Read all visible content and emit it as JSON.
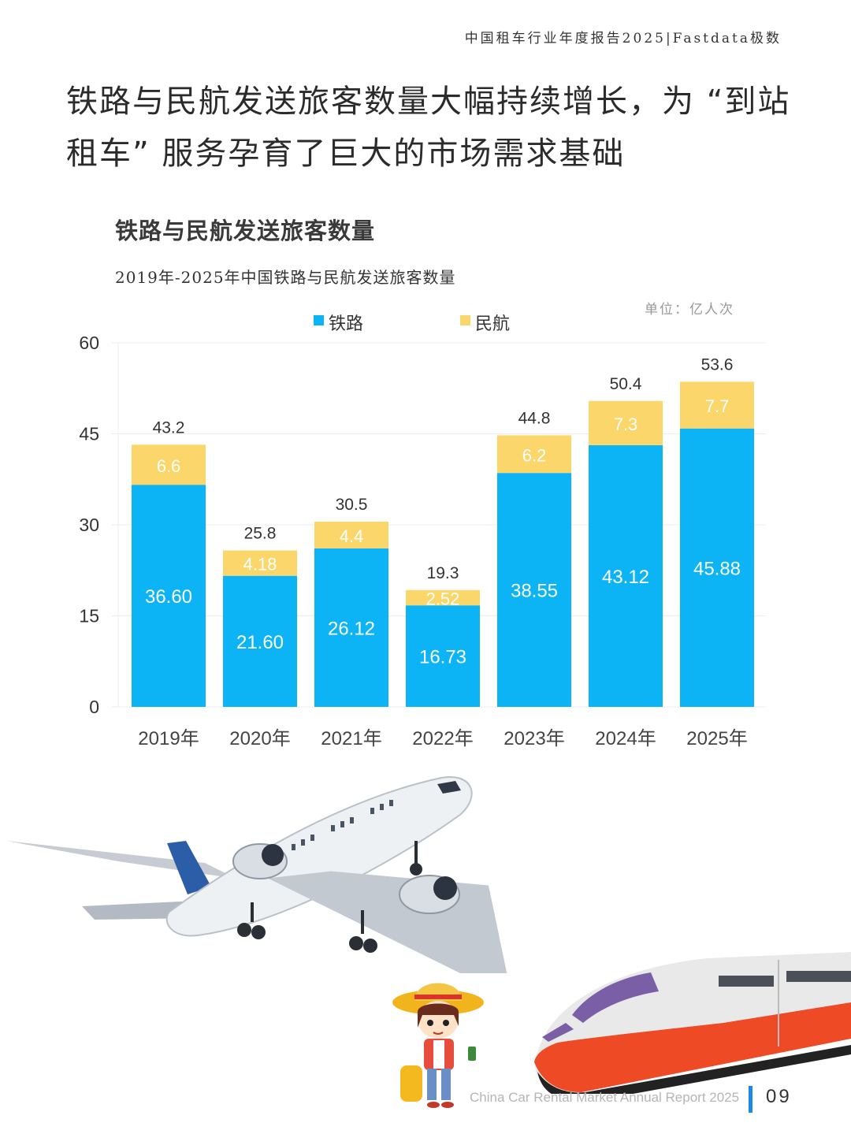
{
  "header": {
    "report_title": "中国租车行业年度报告2025|Fastdata极数"
  },
  "headline": {
    "line1": "铁路与民航发送旅客数量大幅持续增长，为 “到站",
    "line2": "租车” 服务孕育了巨大的市场需求基础"
  },
  "section_title": "铁路与民航发送旅客数量",
  "footer": {
    "text": "China Car Rental Market Annual Report 2025",
    "page": "09"
  },
  "chart_data": {
    "type": "bar",
    "stacked": true,
    "title": "2019年-2025年中国铁路与民航发送旅客数量",
    "unit": "单位：亿人次",
    "categories": [
      "2019年",
      "2020年",
      "2021年",
      "2022年",
      "2023年",
      "2024年",
      "2025年"
    ],
    "series": [
      {
        "name": "铁路",
        "color": "#0cb4f5",
        "values": [
          36.6,
          21.6,
          26.12,
          16.73,
          38.55,
          43.12,
          45.88
        ],
        "labels": [
          "36.60",
          "21.60",
          "26.12",
          "16.73",
          "38.55",
          "43.12",
          "45.88"
        ]
      },
      {
        "name": "民航",
        "color": "#fbd66a",
        "values": [
          6.6,
          4.18,
          4.4,
          2.52,
          6.2,
          7.3,
          7.7
        ],
        "labels": [
          "6.6",
          "4.18",
          "4.4",
          "2.52",
          "6.2",
          "7.3",
          "7.7"
        ]
      }
    ],
    "totals": [
      "43.2",
      "25.8",
      "30.5",
      "19.3",
      "44.8",
      "50.4",
      "53.6"
    ],
    "y_ticks": [
      "0",
      "15",
      "30",
      "45",
      "60"
    ],
    "ylim": [
      0,
      60
    ],
    "legend_position": "top-center",
    "grid": true
  }
}
